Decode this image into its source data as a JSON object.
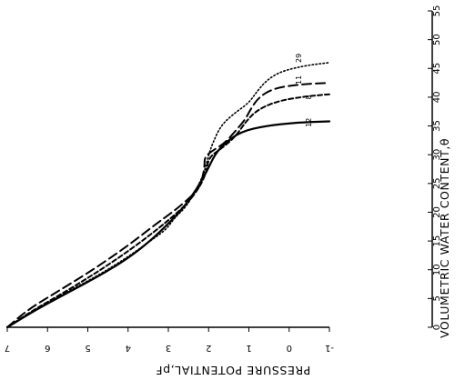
{
  "chart_data": {
    "type": "line",
    "xlabel": "VOLUMETRIC WATER CONTENT,θ",
    "ylabel": "PRESSURE POTENTIAL,pF",
    "xlim": [
      0,
      55
    ],
    "ylim": [
      -1,
      7
    ],
    "x_ticks": [
      "0",
      "5",
      "10",
      "15",
      "20",
      "25",
      "30",
      "35",
      "40",
      "45",
      "50",
      "55"
    ],
    "y_ticks": [
      "7",
      "6",
      "5",
      "4",
      "3",
      "2",
      "1",
      "0",
      "-1"
    ],
    "series": [
      {
        "name": "12",
        "style": "solid",
        "points": [
          [
            0,
            7
          ],
          [
            3,
            6.3
          ],
          [
            6,
            5.5
          ],
          [
            9,
            4.7
          ],
          [
            12,
            4.0
          ],
          [
            15,
            3.45
          ],
          [
            18,
            3.0
          ],
          [
            21,
            2.6
          ],
          [
            24,
            2.3
          ],
          [
            27,
            2.05
          ],
          [
            30,
            1.85
          ],
          [
            32,
            1.6
          ],
          [
            34,
            1.2
          ],
          [
            35,
            0.6
          ],
          [
            35.6,
            -0.2
          ],
          [
            35.8,
            -1
          ]
        ]
      },
      {
        "name": "8",
        "style": "dashed-short",
        "points": [
          [
            0,
            7
          ],
          [
            3,
            6.35
          ],
          [
            6,
            5.6
          ],
          [
            9,
            4.9
          ],
          [
            12,
            4.25
          ],
          [
            15,
            3.65
          ],
          [
            18,
            3.1
          ],
          [
            21,
            2.6
          ],
          [
            24,
            2.25
          ],
          [
            27,
            2.05
          ],
          [
            29.5,
            2.0
          ],
          [
            31,
            1.7
          ],
          [
            33,
            1.35
          ],
          [
            36,
            1.05
          ],
          [
            38,
            0.75
          ],
          [
            39.5,
            0.2
          ],
          [
            40.2,
            -0.5
          ],
          [
            40.5,
            -1
          ]
        ]
      },
      {
        "name": "11",
        "style": "dashed-long",
        "points": [
          [
            0,
            7
          ],
          [
            3,
            6.5
          ],
          [
            6,
            5.8
          ],
          [
            9,
            5.1
          ],
          [
            12,
            4.45
          ],
          [
            15,
            3.85
          ],
          [
            18,
            3.3
          ],
          [
            20,
            2.9
          ],
          [
            22,
            2.55
          ],
          [
            24,
            2.25
          ],
          [
            26,
            2.15
          ],
          [
            28,
            2.1
          ],
          [
            29.5,
            2.1
          ],
          [
            30.5,
            1.95
          ],
          [
            32,
            1.6
          ],
          [
            34,
            1.35
          ],
          [
            36,
            1.1
          ],
          [
            38,
            0.95
          ],
          [
            40,
            0.75
          ],
          [
            41.5,
            0.4
          ],
          [
            42.2,
            -0.2
          ],
          [
            42.5,
            -1
          ]
        ]
      },
      {
        "name": "29",
        "style": "dotted",
        "points": [
          [
            0,
            7
          ],
          [
            3,
            6.35
          ],
          [
            6,
            5.55
          ],
          [
            9,
            4.75
          ],
          [
            12,
            4.05
          ],
          [
            15,
            3.45
          ],
          [
            17,
            3.05
          ],
          [
            19,
            2.85
          ],
          [
            21,
            2.55
          ],
          [
            24,
            2.3
          ],
          [
            27,
            2.1
          ],
          [
            30,
            2.0
          ],
          [
            32,
            1.9
          ],
          [
            35,
            1.7
          ],
          [
            37,
            1.4
          ],
          [
            39,
            1.0
          ],
          [
            41,
            0.8
          ],
          [
            43,
            0.55
          ],
          [
            44.5,
            0.2
          ],
          [
            45.5,
            -0.4
          ],
          [
            46,
            -1
          ]
        ]
      }
    ],
    "series_labels": [
      "12",
      "8",
      "11",
      "29"
    ],
    "annotations": [
      "12",
      "8",
      "11",
      "29"
    ]
  }
}
